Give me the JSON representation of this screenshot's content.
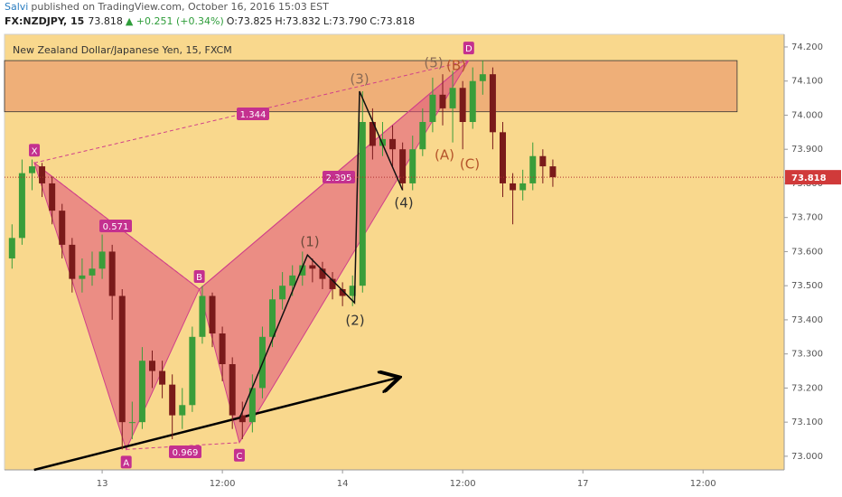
{
  "header": {
    "author": "Salvi",
    "published": "published on TradingView.com, October 16, 2016 15:03 EST",
    "symbol": "FX:NZDJPY, 15",
    "last": "73.818",
    "change": "▲ +0.251 (+0.34%)",
    "open": "O:73.825",
    "high": "H:73.832",
    "low": "L:73.790",
    "close": "C:73.818"
  },
  "chart_data": {
    "type": "candlestick",
    "title": "New Zealand Dollar/Japanese Yen, 15, FXCM",
    "x": [
      -9,
      -8,
      -7,
      -6,
      -5,
      -4,
      -3,
      -2,
      -1,
      0,
      1,
      2,
      3,
      4,
      5,
      6,
      7,
      8,
      9,
      10,
      11,
      12,
      13,
      14,
      15,
      16,
      17,
      18,
      19,
      20,
      21,
      22,
      23,
      24,
      25,
      26,
      27,
      28,
      29,
      30,
      31,
      32,
      33,
      34,
      35,
      36,
      37,
      38,
      39,
      40,
      41,
      42,
      43,
      44,
      45
    ],
    "open": [
      73.58,
      73.64,
      73.83,
      73.85,
      73.8,
      73.72,
      73.62,
      73.52,
      73.53,
      73.55,
      73.6,
      73.47,
      73.1,
      73.1,
      73.28,
      73.25,
      73.21,
      73.12,
      73.15,
      73.35,
      73.47,
      73.36,
      73.27,
      73.12,
      73.1,
      73.2,
      73.35,
      73.46,
      73.5,
      73.53,
      73.56,
      73.55,
      73.52,
      73.49,
      73.47,
      73.5,
      73.98,
      73.91,
      73.93,
      73.9,
      73.8,
      73.9,
      73.98,
      74.06,
      74.02,
      74.08,
      73.98,
      74.1,
      74.12,
      73.95,
      73.8,
      73.78,
      73.8,
      73.88,
      73.85
    ],
    "high": [
      73.68,
      73.87,
      73.87,
      73.86,
      73.82,
      73.74,
      73.64,
      73.58,
      73.6,
      73.65,
      73.62,
      73.49,
      73.16,
      73.32,
      73.31,
      73.28,
      73.24,
      73.2,
      73.38,
      73.5,
      73.48,
      73.38,
      73.29,
      73.16,
      73.24,
      73.38,
      73.49,
      73.54,
      73.56,
      73.6,
      73.58,
      73.57,
      73.54,
      73.51,
      73.53,
      74.07,
      74.02,
      73.98,
      73.97,
      73.92,
      73.94,
      74.02,
      74.11,
      74.12,
      74.13,
      74.1,
      74.14,
      74.16,
      74.14,
      73.98,
      73.83,
      73.84,
      73.92,
      73.9,
      73.87
    ],
    "low": [
      73.55,
      73.62,
      73.78,
      73.76,
      73.68,
      73.58,
      73.48,
      73.48,
      73.5,
      73.52,
      73.4,
      73.02,
      73.05,
      73.08,
      73.2,
      73.17,
      73.05,
      73.08,
      73.13,
      73.33,
      73.32,
      73.22,
      73.08,
      73.05,
      73.07,
      73.17,
      73.32,
      73.43,
      73.47,
      73.5,
      73.51,
      73.49,
      73.46,
      73.44,
      73.44,
      73.48,
      73.87,
      73.88,
      73.85,
      73.78,
      73.78,
      73.88,
      73.95,
      73.97,
      73.92,
      73.9,
      73.96,
      74.06,
      73.9,
      73.76,
      73.68,
      73.75,
      73.78,
      73.8,
      73.79
    ],
    "close": [
      73.64,
      73.83,
      73.85,
      73.8,
      73.72,
      73.62,
      73.52,
      73.53,
      73.55,
      73.6,
      73.47,
      73.1,
      73.1,
      73.28,
      73.25,
      73.21,
      73.12,
      73.15,
      73.35,
      73.47,
      73.36,
      73.27,
      73.12,
      73.1,
      73.2,
      73.35,
      73.46,
      73.5,
      73.53,
      73.56,
      73.55,
      73.52,
      73.49,
      73.47,
      73.5,
      73.98,
      73.91,
      73.93,
      73.9,
      73.8,
      73.9,
      73.98,
      74.06,
      74.02,
      74.08,
      73.98,
      74.1,
      74.12,
      73.95,
      73.8,
      73.78,
      73.8,
      73.88,
      73.85,
      73.818
    ],
    "up_color": "#3a9d3a",
    "down_color": "#7a1a1a",
    "xlim": [
      -9.75,
      68.1
    ],
    "xticks": [
      {
        "value": 0,
        "label": "13"
      },
      {
        "value": 12,
        "label": "12:00"
      },
      {
        "value": 24,
        "label": "14"
      },
      {
        "value": 36,
        "label": "12:00"
      },
      {
        "value": 48,
        "label": "17"
      },
      {
        "value": 60,
        "label": "12:00"
      }
    ],
    "ylim": [
      72.96,
      74.237
    ],
    "yticks": [
      {
        "value": 73,
        "label": "73.000"
      },
      {
        "value": 73.1,
        "label": "73.100"
      },
      {
        "value": 73.2,
        "label": "73.200"
      },
      {
        "value": 73.3,
        "label": "73.300"
      },
      {
        "value": 73.4,
        "label": "73.400"
      },
      {
        "value": 73.5,
        "label": "73.500"
      },
      {
        "value": 73.6,
        "label": "73.600"
      },
      {
        "value": 73.7,
        "label": "73.700"
      },
      {
        "value": 73.8,
        "label": "73.800"
      },
      {
        "value": 73.9,
        "label": "73.900"
      },
      {
        "value": 74,
        "label": "74.000"
      },
      {
        "value": 74.1,
        "label": "74.100"
      },
      {
        "value": 74.2,
        "label": "74.200"
      }
    ],
    "last_price": {
      "value": 73.818,
      "label": "73.818"
    },
    "zone": {
      "from": 74.01,
      "to": 74.16,
      "x_end": 63.4
    },
    "pattern": {
      "points": [
        {
          "name": "X",
          "x": -6.77,
          "y": 73.86
        },
        {
          "name": "A",
          "x": 2.4,
          "y": 73.02
        },
        {
          "name": "B",
          "x": 9.7,
          "y": 73.49
        },
        {
          "name": "C",
          "x": 13.7,
          "y": 73.04
        },
        {
          "name": "D",
          "x": 36.6,
          "y": 74.16
        }
      ],
      "ratios": [
        0.571,
        1.344,
        0.969,
        2.395
      ]
    },
    "wave_line": {
      "x": [
        13.7,
        20.5,
        25.2,
        25.7,
        30
      ],
      "y": [
        73.11,
        73.59,
        73.45,
        74.07,
        73.78
      ]
    },
    "wave_labels": [
      "(1)",
      "(2)",
      "(3)",
      "(4)",
      "(5)",
      "(A)",
      "(B)",
      "(C)"
    ],
    "trend": {
      "x": [
        -6.8,
        29.5
      ],
      "y": [
        72.96,
        73.23
      ]
    }
  }
}
